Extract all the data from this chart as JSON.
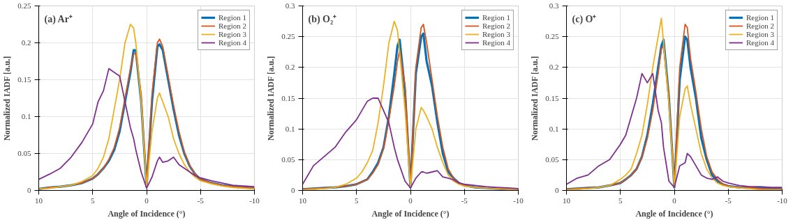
{
  "chart_data": [
    {
      "type": "line",
      "title": "(a) Ar⁺",
      "xlabel": "Angle of Incidence (°)",
      "ylabel": "Normalized IADF [a.u.]",
      "xlim": [
        10,
        -10
      ],
      "xticks": [
        10,
        5,
        0,
        -5,
        -10
      ],
      "ylim": [
        0,
        0.25
      ],
      "yticks": [
        0,
        0.05,
        0.1,
        0.15,
        0.2,
        0.25
      ],
      "grid": true,
      "legend": "top right",
      "line_style": "solid",
      "x": [
        10,
        9,
        8,
        7,
        6,
        5,
        4.5,
        4,
        3.5,
        3,
        2.5,
        2,
        1.5,
        1.2,
        1,
        0.5,
        0,
        -0.5,
        -1,
        -1.2,
        -1.5,
        -2,
        -2.5,
        -3,
        -3.5,
        -4,
        -4.5,
        -5,
        -6,
        -7,
        -8,
        -9,
        -10
      ],
      "series": [
        {
          "name": "Region 1",
          "color": "#0072bd",
          "values": [
            0.002,
            0.004,
            0.005,
            0.007,
            0.01,
            0.016,
            0.022,
            0.03,
            0.04,
            0.055,
            0.08,
            0.12,
            0.16,
            0.19,
            0.19,
            0.12,
            0.005,
            0.12,
            0.195,
            0.198,
            0.19,
            0.15,
            0.11,
            0.075,
            0.05,
            0.033,
            0.022,
            0.015,
            0.01,
            0.007,
            0.005,
            0.004,
            0.003
          ]
        },
        {
          "name": "Region 2",
          "color": "#d95319",
          "values": [
            0.002,
            0.004,
            0.005,
            0.007,
            0.01,
            0.016,
            0.022,
            0.03,
            0.042,
            0.058,
            0.085,
            0.125,
            0.165,
            0.185,
            0.185,
            0.13,
            0.005,
            0.13,
            0.2,
            0.205,
            0.195,
            0.155,
            0.115,
            0.08,
            0.052,
            0.034,
            0.022,
            0.015,
            0.01,
            0.007,
            0.005,
            0.004,
            0.003
          ]
        },
        {
          "name": "Region 3",
          "color": "#edb120",
          "values": [
            0.002,
            0.003,
            0.005,
            0.007,
            0.012,
            0.02,
            0.03,
            0.045,
            0.07,
            0.11,
            0.15,
            0.2,
            0.225,
            0.22,
            0.2,
            0.12,
            0.005,
            0.08,
            0.125,
            0.132,
            0.12,
            0.1,
            0.07,
            0.05,
            0.035,
            0.025,
            0.018,
            0.013,
            0.009,
            0.006,
            0.004,
            0.003,
            0.002
          ]
        },
        {
          "name": "Region 4",
          "color": "#7e2f8e",
          "values": [
            0.015,
            0.022,
            0.03,
            0.045,
            0.065,
            0.09,
            0.12,
            0.135,
            0.165,
            0.16,
            0.155,
            0.12,
            0.085,
            0.07,
            0.055,
            0.025,
            0.003,
            0.018,
            0.04,
            0.045,
            0.038,
            0.04,
            0.045,
            0.035,
            0.03,
            0.025,
            0.02,
            0.017,
            0.013,
            0.01,
            0.007,
            0.006,
            0.005
          ]
        }
      ]
    },
    {
      "type": "line",
      "title": "(b) O₂⁺",
      "xlabel": "Angle of Incidence (°)",
      "ylabel": "Normalized IADF [a.u.]",
      "xlim": [
        10,
        -10
      ],
      "xticks": [
        10,
        5,
        0,
        -5,
        -10
      ],
      "ylim": [
        0,
        0.3
      ],
      "yticks": [
        0,
        0.05,
        0.1,
        0.15,
        0.2,
        0.25,
        0.3
      ],
      "grid": true,
      "legend": "top right",
      "line_style": "solid",
      "x": [
        10,
        9,
        8,
        7,
        6,
        5,
        4.5,
        4,
        3.5,
        3,
        2.5,
        2,
        1.5,
        1.2,
        1,
        0.5,
        0,
        -0.5,
        -1,
        -1.2,
        -1.5,
        -2,
        -2.5,
        -3,
        -3.5,
        -4,
        -4.5,
        -5,
        -6,
        -7,
        -8,
        -9,
        -10
      ],
      "series": [
        {
          "name": "Region 1",
          "color": "#0072bd",
          "values": [
            0.002,
            0.003,
            0.004,
            0.005,
            0.007,
            0.01,
            0.014,
            0.018,
            0.03,
            0.045,
            0.07,
            0.12,
            0.19,
            0.235,
            0.245,
            0.16,
            0.005,
            0.19,
            0.25,
            0.255,
            0.21,
            0.17,
            0.11,
            0.06,
            0.03,
            0.02,
            0.012,
            0.008,
            0.005,
            0.004,
            0.003,
            0.002,
            0.002
          ]
        },
        {
          "name": "Region 2",
          "color": "#d95319",
          "values": [
            0.002,
            0.003,
            0.004,
            0.005,
            0.007,
            0.01,
            0.014,
            0.018,
            0.028,
            0.042,
            0.068,
            0.115,
            0.17,
            0.21,
            0.228,
            0.17,
            0.005,
            0.2,
            0.265,
            0.27,
            0.24,
            0.18,
            0.12,
            0.07,
            0.035,
            0.02,
            0.012,
            0.008,
            0.005,
            0.004,
            0.003,
            0.002,
            0.002
          ]
        },
        {
          "name": "Region 3",
          "color": "#edb120",
          "values": [
            0.001,
            0.002,
            0.003,
            0.005,
            0.01,
            0.02,
            0.03,
            0.045,
            0.065,
            0.11,
            0.17,
            0.24,
            0.275,
            0.26,
            0.225,
            0.13,
            0.005,
            0.1,
            0.135,
            0.13,
            0.12,
            0.1,
            0.07,
            0.045,
            0.025,
            0.015,
            0.01,
            0.007,
            0.005,
            0.004,
            0.003,
            0.002,
            0.002
          ]
        },
        {
          "name": "Region 4",
          "color": "#7e2f8e",
          "values": [
            0.01,
            0.04,
            0.055,
            0.07,
            0.095,
            0.115,
            0.13,
            0.145,
            0.15,
            0.15,
            0.13,
            0.11,
            0.07,
            0.05,
            0.04,
            0.015,
            0.004,
            0.02,
            0.03,
            0.03,
            0.028,
            0.03,
            0.032,
            0.022,
            0.02,
            0.017,
            0.012,
            0.01,
            0.008,
            0.006,
            0.005,
            0.004,
            0.003
          ]
        }
      ]
    },
    {
      "type": "line",
      "title": "(c) O⁺",
      "xlabel": "Angle of Incidence (°)",
      "ylabel": "Normalized IADF [a.u.]",
      "xlim": [
        10,
        -10
      ],
      "xticks": [
        10,
        5,
        0,
        -5,
        -10
      ],
      "ylim": [
        0,
        0.3
      ],
      "yticks": [
        0,
        0.05,
        0.1,
        0.15,
        0.2,
        0.25,
        0.3
      ],
      "grid": true,
      "legend": "top right",
      "line_style": "solid",
      "x": [
        10,
        9,
        8,
        7,
        6,
        5,
        4.5,
        4,
        3.5,
        3,
        2.5,
        2,
        1.5,
        1.2,
        1,
        0.5,
        0,
        -0.5,
        -1,
        -1.2,
        -1.5,
        -2,
        -2.5,
        -3,
        -3.5,
        -4,
        -4.5,
        -5,
        -6,
        -7,
        -8,
        -9,
        -10
      ],
      "series": [
        {
          "name": "Region 1",
          "color": "#0072bd",
          "values": [
            0.002,
            0.003,
            0.004,
            0.005,
            0.008,
            0.012,
            0.018,
            0.025,
            0.035,
            0.055,
            0.09,
            0.14,
            0.2,
            0.235,
            0.245,
            0.15,
            0.005,
            0.18,
            0.25,
            0.245,
            0.2,
            0.15,
            0.085,
            0.05,
            0.025,
            0.015,
            0.01,
            0.007,
            0.005,
            0.004,
            0.004,
            0.003,
            0.003
          ]
        },
        {
          "name": "Region 2",
          "color": "#d95319",
          "values": [
            0.002,
            0.003,
            0.004,
            0.005,
            0.008,
            0.012,
            0.018,
            0.025,
            0.035,
            0.055,
            0.085,
            0.13,
            0.19,
            0.23,
            0.235,
            0.15,
            0.005,
            0.2,
            0.27,
            0.265,
            0.215,
            0.16,
            0.1,
            0.055,
            0.03,
            0.018,
            0.01,
            0.007,
            0.005,
            0.004,
            0.003,
            0.002,
            0.002
          ]
        },
        {
          "name": "Region 3",
          "color": "#edb120",
          "values": [
            0.001,
            0.002,
            0.003,
            0.005,
            0.008,
            0.018,
            0.025,
            0.035,
            0.06,
            0.09,
            0.14,
            0.2,
            0.25,
            0.28,
            0.24,
            0.14,
            0.005,
            0.12,
            0.165,
            0.17,
            0.14,
            0.1,
            0.06,
            0.035,
            0.02,
            0.012,
            0.008,
            0.006,
            0.004,
            0.003,
            0.001,
            0.001,
            0.001
          ]
        },
        {
          "name": "Region 4",
          "color": "#7e2f8e",
          "values": [
            0.01,
            0.02,
            0.025,
            0.04,
            0.05,
            0.075,
            0.09,
            0.12,
            0.15,
            0.19,
            0.175,
            0.19,
            0.13,
            0.11,
            0.07,
            0.015,
            0.005,
            0.04,
            0.045,
            0.06,
            0.055,
            0.04,
            0.025,
            0.02,
            0.018,
            0.022,
            0.015,
            0.012,
            0.008,
            0.006,
            0.006,
            0.005,
            0.005
          ]
        }
      ]
    }
  ]
}
